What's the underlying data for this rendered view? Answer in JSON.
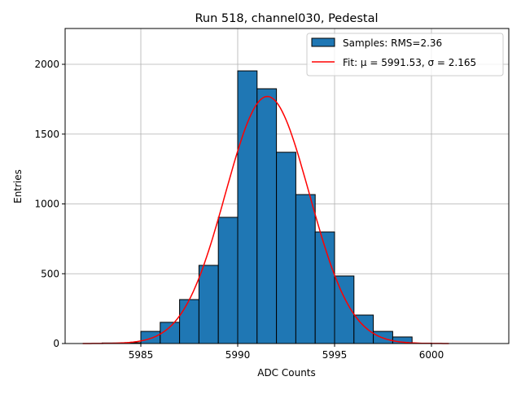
{
  "chart_data": {
    "type": "bar",
    "title": "Run 518, channel030, Pedestal",
    "xlabel": "ADC Counts",
    "ylabel": "Entries",
    "xlim": [
      5981.1,
      6004
    ],
    "ylim": [
      0,
      2260
    ],
    "xticks": [
      5985,
      5990,
      5995,
      6000
    ],
    "yticks": [
      0,
      500,
      1000,
      1500,
      2000
    ],
    "grid": true,
    "legend_position": "top-right",
    "bin_edges": [
      5983,
      5984,
      5985,
      5986,
      5987,
      5988,
      5989,
      5990,
      5991,
      5992,
      5993,
      5994,
      5995,
      5996,
      5997,
      5998,
      5999,
      6000
    ],
    "values": [
      4,
      6,
      87,
      152,
      315,
      560,
      904,
      1953,
      1825,
      1370,
      1067,
      799,
      484,
      204,
      87,
      47,
      3
    ],
    "bar_color": "#1f77b4",
    "fit": {
      "mu": 5991.53,
      "sigma": 2.165,
      "amplitude": 1770,
      "range": [
        5982,
        6001
      ],
      "color": "#ff0000"
    },
    "legend": [
      "Samples: RMS=2.36",
      "Fit: μ = 5991.53, σ = 2.165"
    ]
  }
}
